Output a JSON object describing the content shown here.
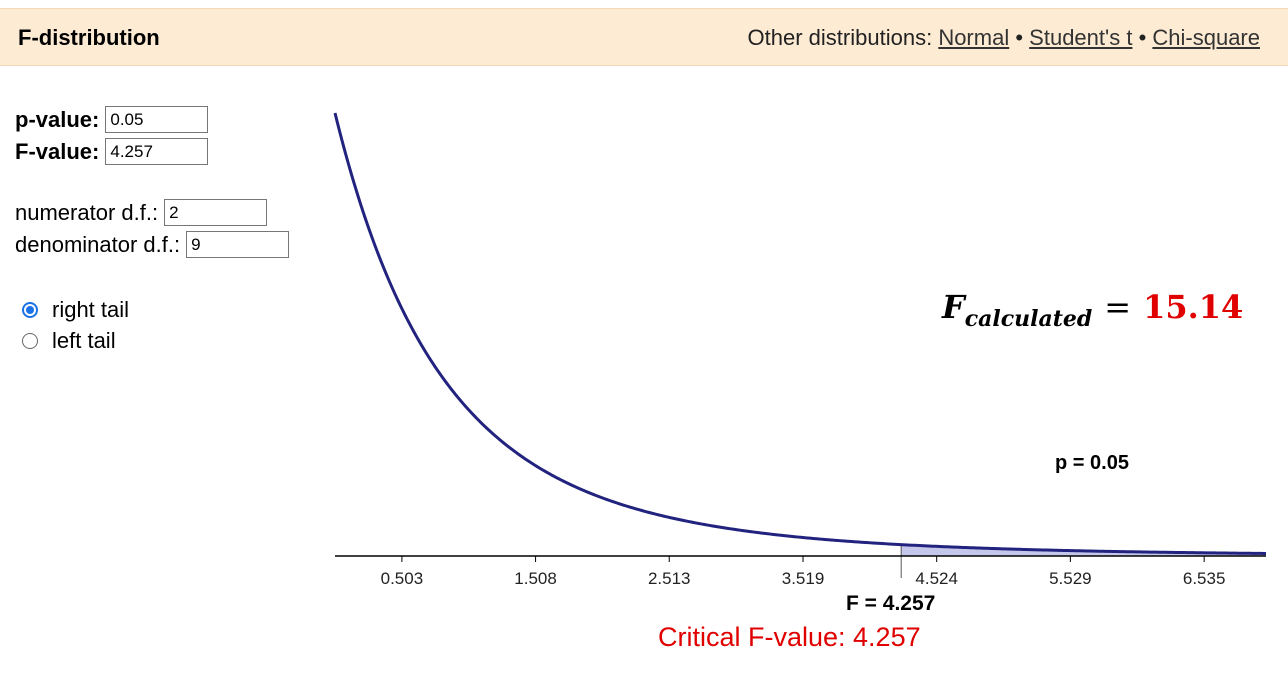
{
  "header": {
    "title": "F-distribution",
    "others_prefix": "Other distributions:",
    "links": [
      "Normal",
      "Student's t",
      "Chi-square"
    ],
    "separator": "•"
  },
  "form": {
    "pvalue_label": "p-value:",
    "pvalue": "0.05",
    "fvalue_label": "F-value:",
    "fvalue": "4.257",
    "num_df_label": "numerator d.f.:",
    "num_df": "2",
    "den_df_label": "denominator d.f.:",
    "den_df": "9",
    "tail_options": [
      "right tail",
      "left tail"
    ],
    "selected_tail": "right tail"
  },
  "annotation": {
    "f_symbol": "F",
    "f_subscript": "calculated",
    "equals": "=",
    "f_value": "15.14"
  },
  "chart_data": {
    "type": "area",
    "distribution": "F",
    "df1": 2,
    "df2": 9,
    "x_ticks": [
      "0.503",
      "1.508",
      "2.513",
      "3.519",
      "4.524",
      "5.529",
      "6.535"
    ],
    "xlim": [
      0,
      7.0
    ],
    "critical_value": 4.257,
    "shaded_region": "right tail",
    "p_label": "p = 0.05",
    "f_label": "F = 4.257",
    "critical_label": "Critical F-value: 4.257",
    "curve_color": "#22237f",
    "shade_color": "#c4c6ea"
  }
}
